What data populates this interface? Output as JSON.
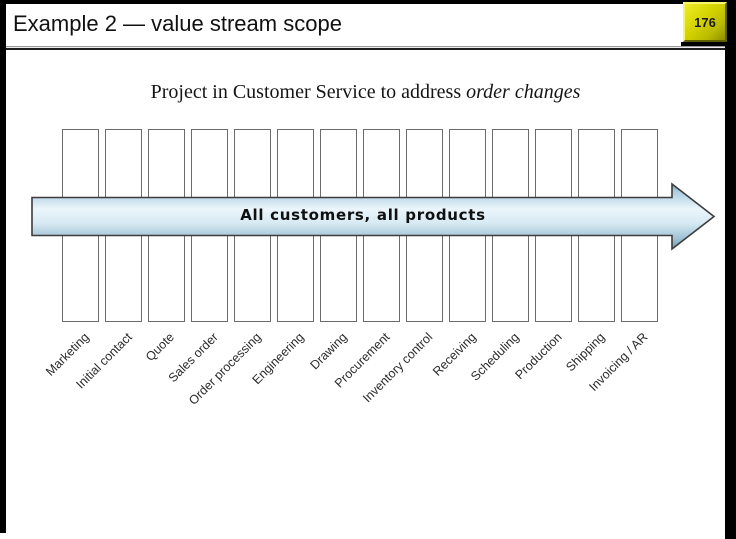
{
  "header": {
    "title": "Example 2 — value stream scope",
    "page_number": "176"
  },
  "slide": {
    "subtitle": {
      "text_normal": "Project in Customer Service to address ",
      "text_italic": "order changes"
    },
    "arrow_label": "All customers, all products",
    "process_steps": [
      "Marketing",
      "Initial contact",
      "Quote",
      "Sales order",
      "Order processing",
      "Engineering",
      "Drawing",
      "Procurement",
      "Inventory control",
      "Receiving",
      "Scheduling",
      "Production",
      "Shipping",
      "Invoicing / AR"
    ],
    "colors": {
      "arrow_edge_dark": "#6f99b4",
      "arrow_mid_light": "#ebf5fb",
      "arrow_outline": "#3c3c3c",
      "page_box_yellow": "#d2d200",
      "column_border": "#6b6b6b"
    }
  }
}
